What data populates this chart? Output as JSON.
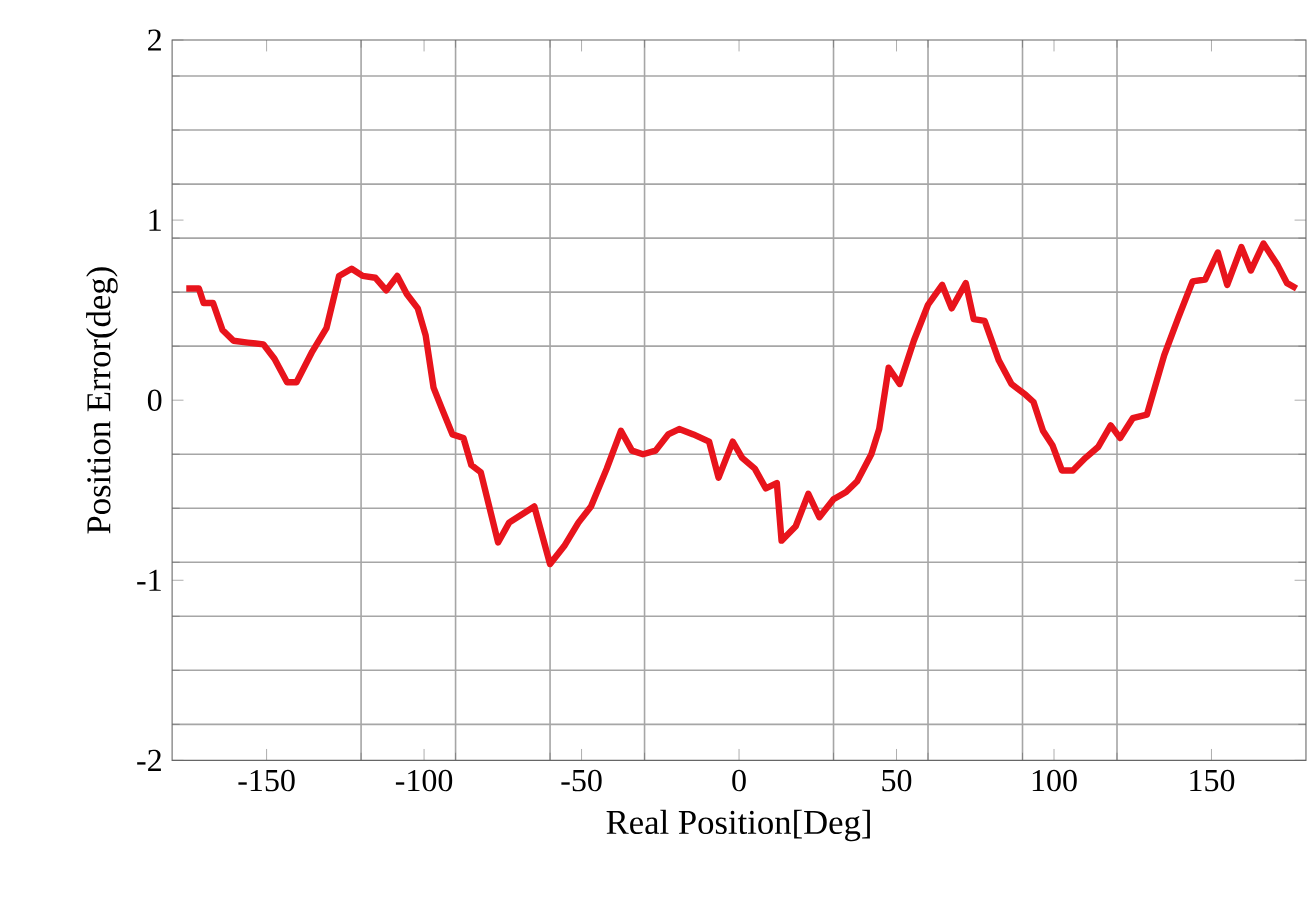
{
  "chart_data": {
    "type": "line",
    "xlabel": "Real Position[Deg]",
    "ylabel": "Position Error(deg)",
    "xlim": [
      -180,
      180
    ],
    "ylim": [
      -2,
      2
    ],
    "xticks": [
      -150,
      -100,
      -50,
      0,
      50,
      100,
      150,
      {
        "value": -120,
        "label": null
      },
      {
        "value": -90,
        "label": null
      },
      {
        "value": -60,
        "label": null
      },
      {
        "value": -30,
        "label": null
      },
      {
        "value": 30,
        "label": null
      },
      {
        "value": 60,
        "label": null
      },
      {
        "value": 90,
        "label": null
      },
      {
        "value": 120,
        "label": null
      }
    ],
    "yticks": [
      -2,
      -1,
      0,
      1,
      2,
      {
        "value": -1.8,
        "label": null
      },
      {
        "value": -1.5,
        "label": null
      },
      {
        "value": -1.2,
        "label": null
      },
      {
        "value": -0.9,
        "label": null
      },
      {
        "value": -0.6,
        "label": null
      },
      {
        "value": -0.3,
        "label": null
      },
      {
        "value": 0.3,
        "label": null
      },
      {
        "value": 0.6,
        "label": null
      },
      {
        "value": 0.9,
        "label": null
      },
      {
        "value": 1.2,
        "label": null
      },
      {
        "value": 1.5,
        "label": null
      },
      {
        "value": 1.8,
        "label": null
      }
    ],
    "grid": true,
    "line_style": "solid",
    "series": [
      {
        "color": "#e8141c",
        "x": [
          -175.5,
          -171.5,
          -170,
          -167,
          -164,
          -160.5,
          -156,
          -151,
          -147.5,
          -143.5,
          -140.5,
          -135.5,
          -131,
          -127,
          -123,
          -119.5,
          -115.5,
          -112,
          -108.5,
          -105.5,
          -102,
          -99.5,
          -97,
          -94.5,
          -91,
          -87.5,
          -85,
          -82,
          -76.5,
          -73,
          -65,
          -60,
          -55.5,
          -51,
          -47,
          -42,
          -37.5,
          -34,
          -30.5,
          -26.5,
          -22.5,
          -19,
          -14.5,
          -9.5,
          -6.5,
          -2,
          1,
          5,
          8.5,
          12,
          13.5,
          18,
          22,
          25.5,
          30,
          34,
          37.5,
          42,
          44.5,
          47.5,
          51,
          55.5,
          60,
          64.5,
          67.5,
          72,
          74.5,
          78,
          82.5,
          86.5,
          91,
          93.5,
          96.5,
          99.5,
          102.5,
          106,
          110,
          114,
          118,
          121,
          125,
          129.5,
          132.5,
          135,
          139.5,
          144,
          148,
          152,
          155,
          159.5,
          162.5,
          166.5,
          171,
          174,
          177
        ],
        "values": [
          0.62,
          0.62,
          0.54,
          0.54,
          0.39,
          0.33,
          0.32,
          0.31,
          0.23,
          0.1,
          0.1,
          0.27,
          0.4,
          0.69,
          0.73,
          0.69,
          0.68,
          0.61,
          0.69,
          0.59,
          0.51,
          0.36,
          0.07,
          -0.04,
          -0.19,
          -0.21,
          -0.36,
          -0.4,
          -0.79,
          -0.68,
          -0.59,
          -0.91,
          -0.81,
          -0.68,
          -0.59,
          -0.38,
          -0.17,
          -0.28,
          -0.3,
          -0.28,
          -0.19,
          -0.16,
          -0.19,
          -0.23,
          -0.43,
          -0.23,
          -0.32,
          -0.38,
          -0.49,
          -0.46,
          -0.78,
          -0.7,
          -0.52,
          -0.65,
          -0.55,
          -0.51,
          -0.45,
          -0.3,
          -0.16,
          0.18,
          0.09,
          0.33,
          0.53,
          0.64,
          0.51,
          0.65,
          0.45,
          0.44,
          0.22,
          0.09,
          0.03,
          -0.01,
          -0.17,
          -0.25,
          -0.39,
          -0.39,
          -0.32,
          -0.26,
          -0.14,
          -0.21,
          -0.1,
          -0.08,
          0.1,
          0.25,
          0.46,
          0.66,
          0.67,
          0.82,
          0.64,
          0.85,
          0.72,
          0.87,
          0.75,
          0.65,
          0.62
        ]
      }
    ]
  }
}
